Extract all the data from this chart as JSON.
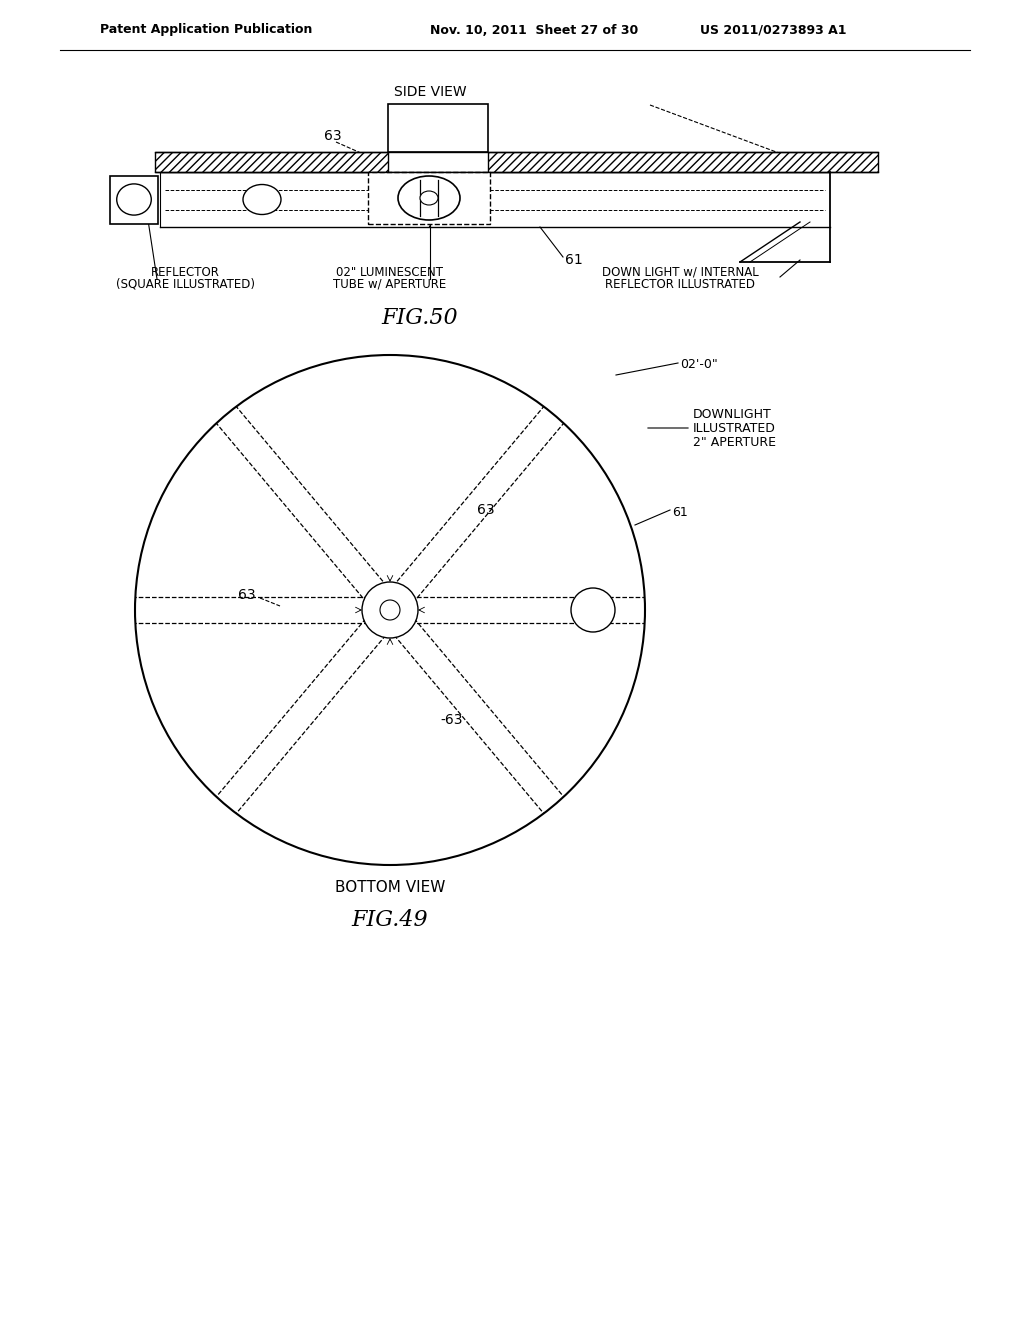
{
  "bg_color": "#ffffff",
  "line_color": "#000000",
  "header_text_left": "Patent Application Publication",
  "header_text_mid": "Nov. 10, 2011  Sheet 27 of 30",
  "header_text_right": "US 2011/0273893 A1",
  "fig50_title": "SIDE VIEW",
  "fig50_label": "FIG.50",
  "fig49_title": "BOTTOM VIEW",
  "fig49_label": "FIG.49"
}
